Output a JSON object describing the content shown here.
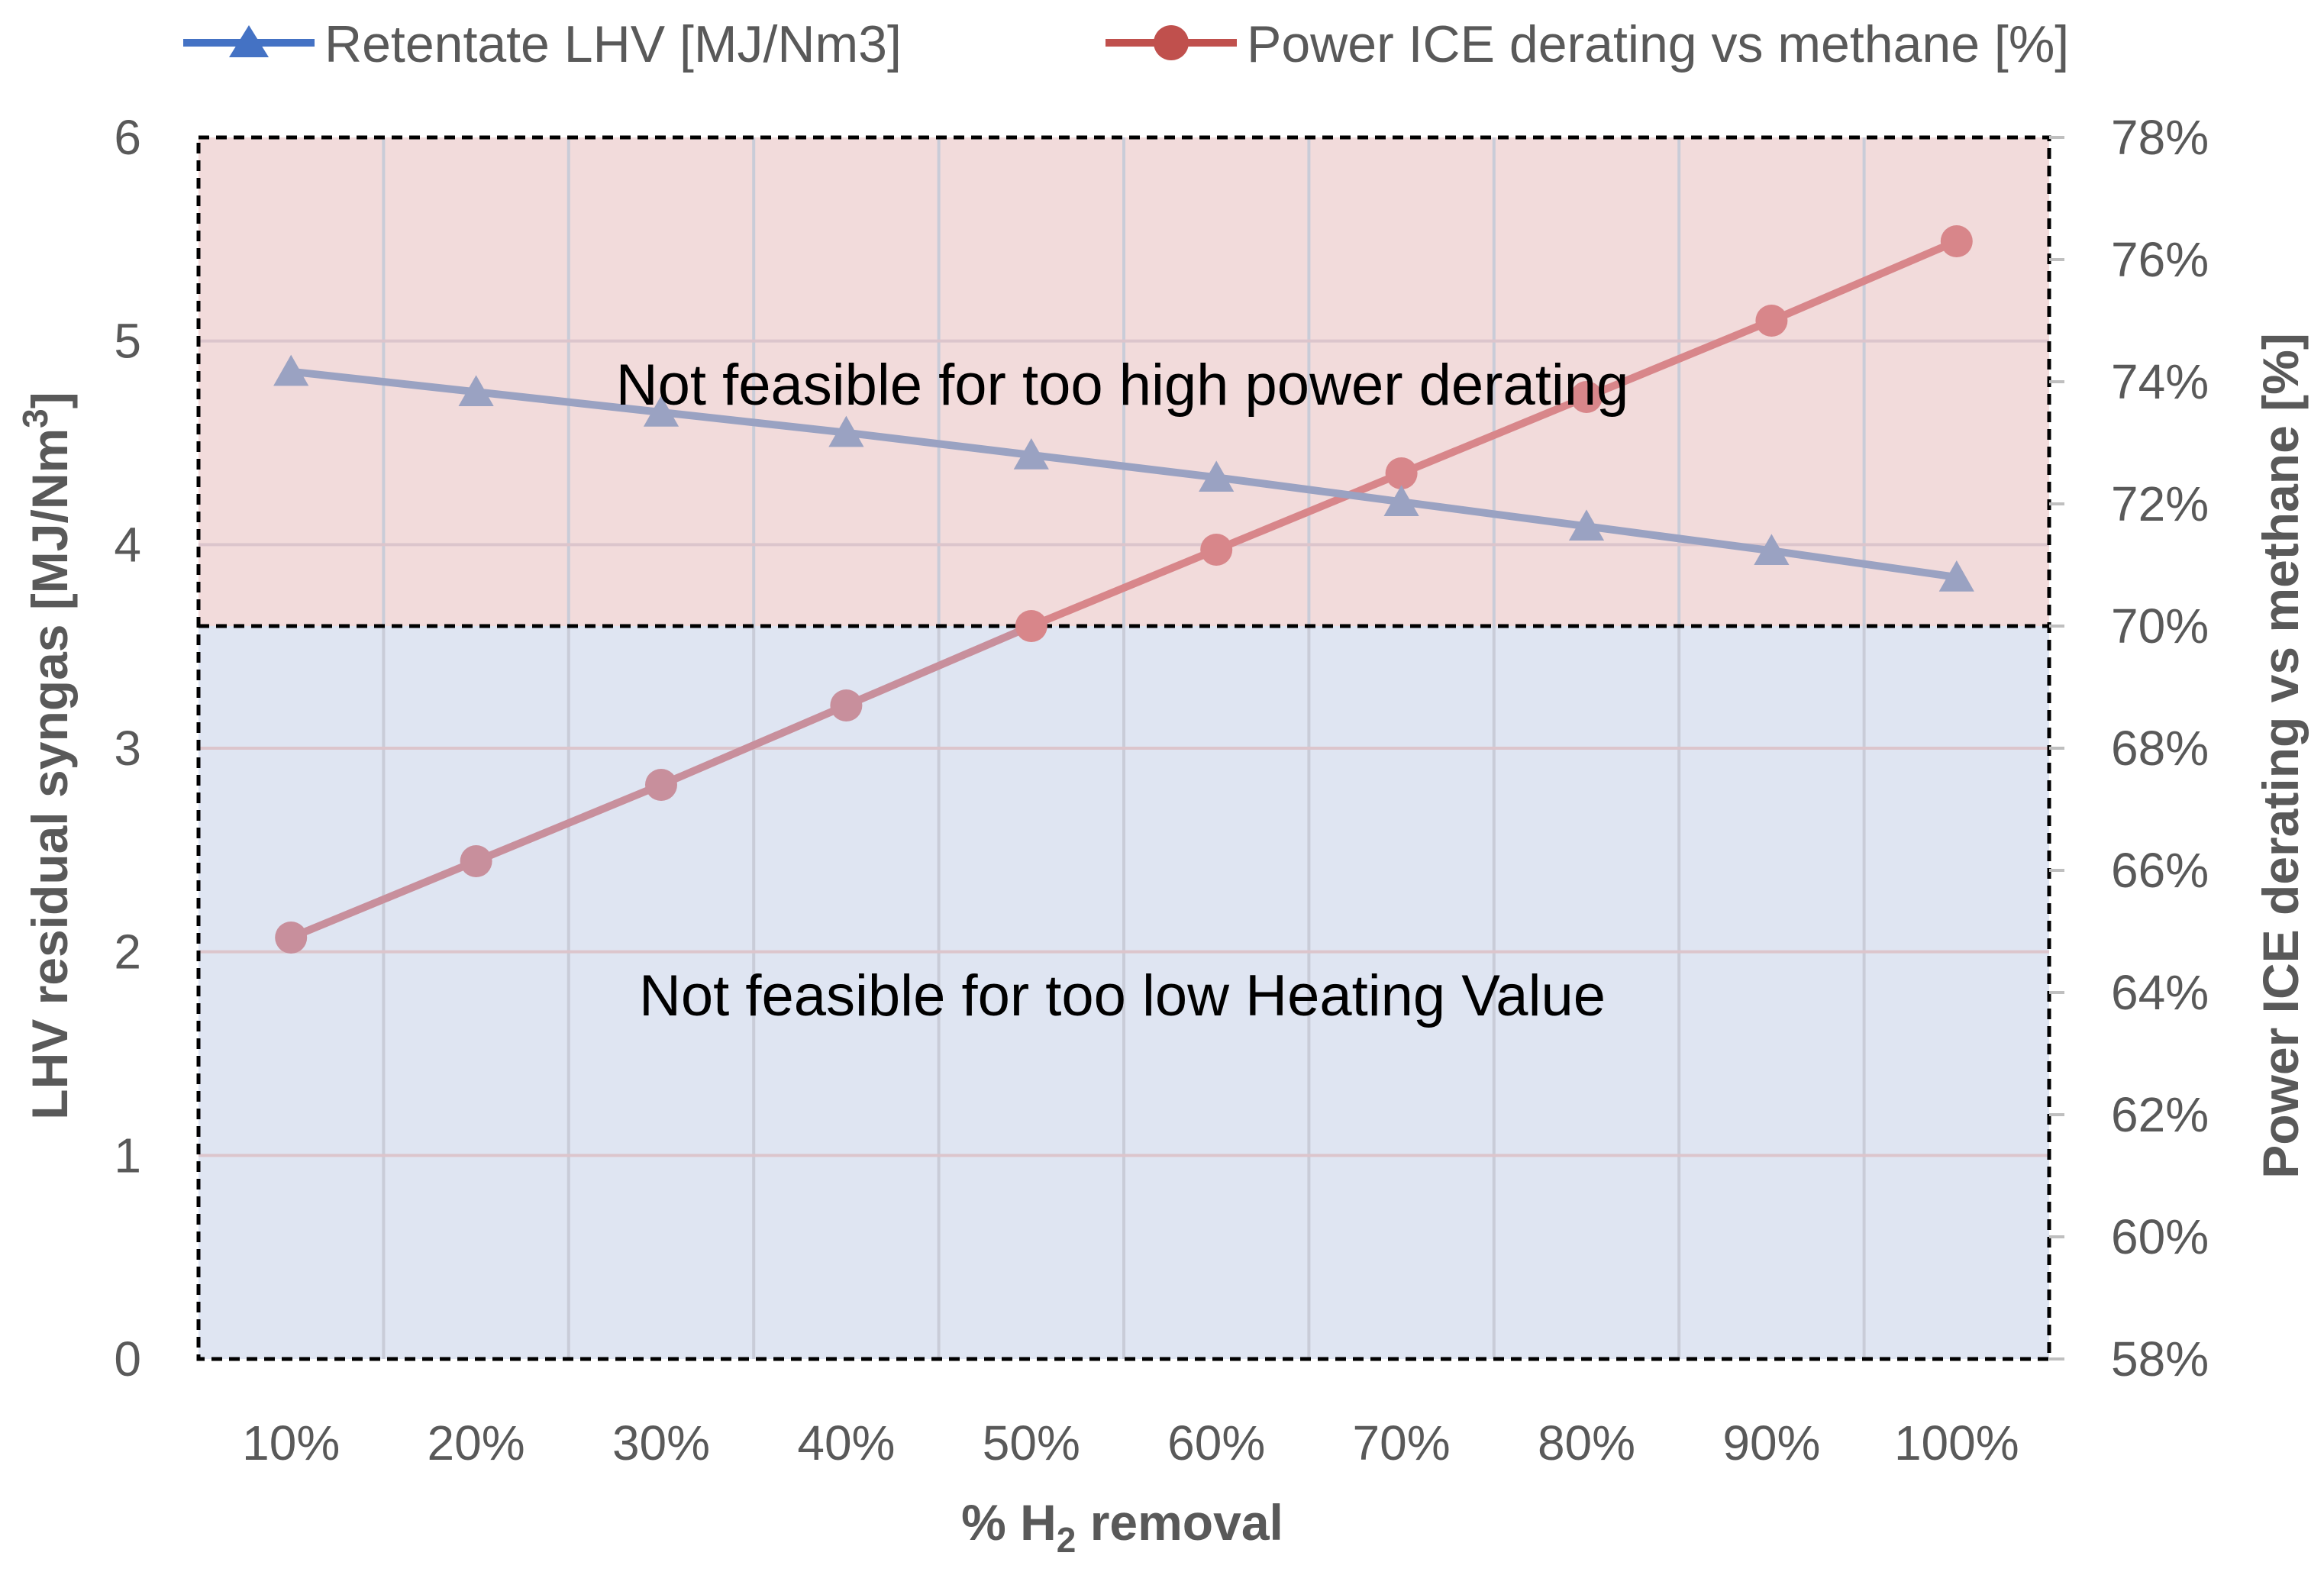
{
  "chart_data": {
    "type": "line",
    "title": "",
    "xlabel": "% H2 removal",
    "xlabel_main": "% H",
    "xlabel_sub": "2",
    "xlabel_tail": " removal",
    "ylabel": "LHV residual syngas [MJ/Nm3]",
    "ylabel_main": "LHV residual syngas [MJ/Nm",
    "ylabel_sup": "3",
    "ylabel_tail": "]",
    "y2label": "Power ICE derating vs methane [%]",
    "categories": [
      "10%",
      "20%",
      "30%",
      "40%",
      "50%",
      "60%",
      "70%",
      "80%",
      "90%",
      "100%"
    ],
    "ylim": [
      0,
      6
    ],
    "y_ticks": [
      "0",
      "1",
      "2",
      "3",
      "4",
      "5",
      "6"
    ],
    "y2lim": [
      58,
      78
    ],
    "y2_ticks": [
      "58%",
      "60%",
      "62%",
      "64%",
      "66%",
      "68%",
      "70%",
      "72%",
      "74%",
      "76%",
      "78%"
    ],
    "grid": true,
    "legend_position": "top",
    "series": [
      {
        "name": "Retentate LHV [MJ/Nm3]",
        "axis": "left",
        "marker": "triangle",
        "color": "#4472C4",
        "plot_color": "#9AA2C2",
        "values": [
          4.85,
          4.75,
          4.65,
          4.55,
          4.44,
          4.33,
          4.21,
          4.09,
          3.97,
          3.84
        ]
      },
      {
        "name": "Power ICE derating vs methane [%]",
        "axis": "right",
        "marker": "circle",
        "color": "#C0504D",
        "plot_color": "#D8868A",
        "lower_color": "#C88F9C",
        "values": [
          64.9,
          66.15,
          67.4,
          68.7,
          70.0,
          71.25,
          72.5,
          73.75,
          75.0,
          76.3
        ]
      }
    ],
    "regions": [
      {
        "label": "Not feasible for too high power derating",
        "y_from": 3.6,
        "y_to": 6,
        "color": "#F2DBDB"
      },
      {
        "label": "Not feasible for too low Heating Value",
        "y_from": 0,
        "y_to": 3.6,
        "color": "#DFE5F2"
      }
    ],
    "threshold_y": 3.6
  }
}
